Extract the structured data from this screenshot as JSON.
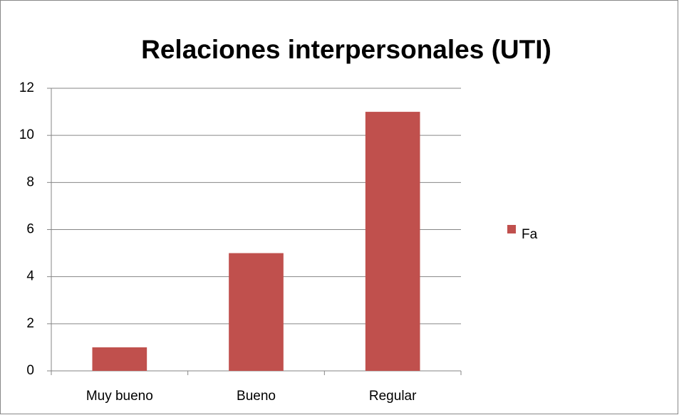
{
  "chart_data": {
    "type": "bar",
    "title": "Relaciones interpersonales (UTI)",
    "categories": [
      "Muy bueno",
      "Bueno",
      "Regular"
    ],
    "series": [
      {
        "name": "Fa",
        "color": "#c0504d",
        "values": [
          1,
          5,
          11
        ]
      }
    ],
    "ylim": [
      0,
      12
    ],
    "yticks": [
      0,
      2,
      4,
      6,
      8,
      10,
      12
    ],
    "grid": true,
    "legend": "right"
  }
}
